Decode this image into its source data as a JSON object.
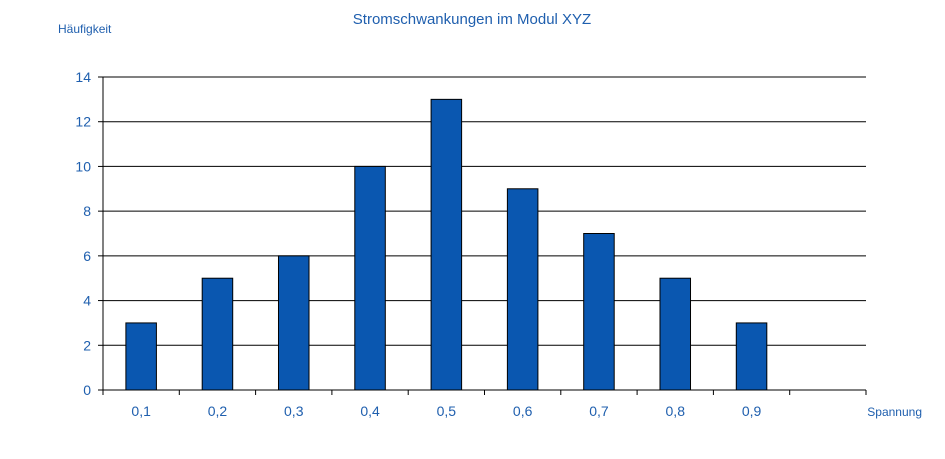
{
  "chart_data": {
    "type": "bar",
    "title": "Stromschwankungen im Modul XYZ",
    "ylabel": "Häufigkeit",
    "xlabel": "Spannung",
    "categories": [
      "0,1",
      "0,2",
      "0,3",
      "0,4",
      "0,5",
      "0,6",
      "0,7",
      "0,8",
      "0,9",
      ""
    ],
    "values": [
      3,
      5,
      6,
      10,
      13,
      9,
      7,
      5,
      3,
      null
    ],
    "ylim": [
      0,
      14
    ],
    "yticks": [
      "0",
      "2",
      "4",
      "6",
      "8",
      "10",
      "12",
      "14"
    ],
    "grid": true,
    "legend": "none",
    "colors": {
      "bar": "#0a57b0",
      "bar_stroke": "#000000",
      "text": "#1f5fae",
      "grid": "#000000"
    }
  }
}
